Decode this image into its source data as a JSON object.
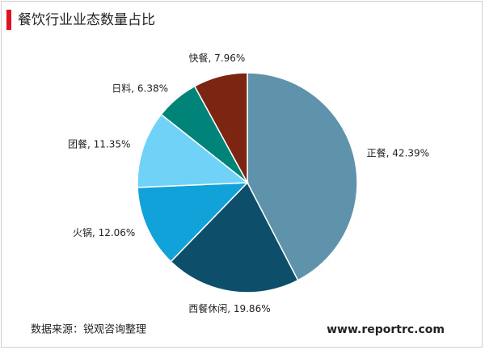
{
  "chart_data": {
    "type": "pie",
    "title": "餐饮行业业态数量占比",
    "values": [
      42.39,
      19.86,
      12.06,
      11.35,
      6.38,
      7.96
    ],
    "value_labels": [
      "正餐, 42.39%",
      "西餐休闲, 19.86%",
      "火锅, 12.06%",
      "团餐, 11.35%",
      "日料, 6.38%",
      "快餐, 7.96%"
    ],
    "colors": [
      "#5f93ab",
      "#0d4f6b",
      "#10a2d8",
      "#70d2f6",
      "#008479",
      "#7c2513"
    ],
    "source": "数据来源：锐观咨询整理",
    "watermark": "www.reportrc.com"
  }
}
